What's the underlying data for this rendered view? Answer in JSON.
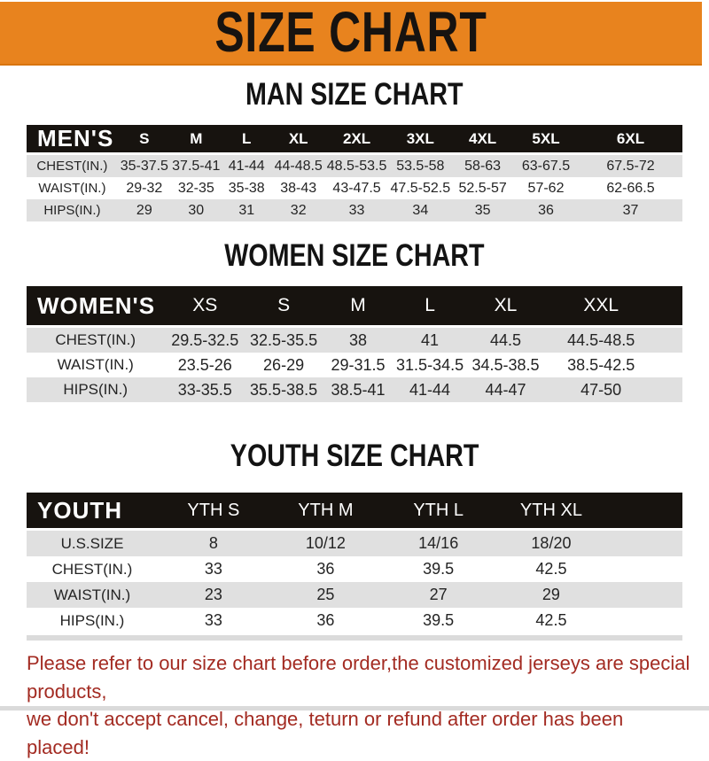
{
  "banner": {
    "title": "SIZE CHART",
    "bg_color": "#E8831E",
    "text_color": "#171310"
  },
  "colors": {
    "header_bar": "#17130F",
    "row_gray": "#E0E0E0",
    "row_white": "#FFFFFF",
    "footer_red": "#A32B22"
  },
  "sections": [
    {
      "title": "MAN SIZE CHART",
      "header": {
        "label": "MEN'S",
        "sizes": [
          "S",
          "M",
          "L",
          "XL",
          "2XL",
          "3XL",
          "4XL",
          "5XL",
          "6XL"
        ]
      },
      "rows": [
        {
          "label": "CHEST(IN.)",
          "values": [
            "35-37.5",
            "37.5-41",
            "41-44",
            "44-48.5",
            "48.5-53.5",
            "53.5-58",
            "58-63",
            "63-67.5",
            "67.5-72"
          ]
        },
        {
          "label": "WAIST(IN.)",
          "values": [
            "29-32",
            "32-35",
            "35-38",
            "38-43",
            "43-47.5",
            "47.5-52.5",
            "52.5-57",
            "57-62",
            "62-66.5"
          ]
        },
        {
          "label": "HIPS(IN.)",
          "values": [
            "29",
            "30",
            "31",
            "32",
            "33",
            "34",
            "35",
            "36",
            "37"
          ]
        }
      ]
    },
    {
      "title": "WOMEN SIZE CHART",
      "header": {
        "label": "WOMEN'S",
        "sizes": [
          "XS",
          "S",
          "M",
          "L",
          "XL",
          "XXL"
        ]
      },
      "rows": [
        {
          "label": "CHEST(IN.)",
          "values": [
            "29.5-32.5",
            "32.5-35.5",
            "38",
            "41",
            "44.5",
            "44.5-48.5"
          ]
        },
        {
          "label": "WAIST(IN.)",
          "values": [
            "23.5-26",
            "26-29",
            "29-31.5",
            "31.5-34.5",
            "34.5-38.5",
            "38.5-42.5"
          ]
        },
        {
          "label": "HIPS(IN.)",
          "values": [
            "33-35.5",
            "35.5-38.5",
            "38.5-41",
            "41-44",
            "44-47",
            "47-50"
          ]
        }
      ]
    },
    {
      "title": "YOUTH SIZE CHART",
      "header": {
        "label": "YOUTH",
        "sizes": [
          "YTH S",
          "YTH M",
          "YTH L",
          "YTH XL"
        ]
      },
      "rows": [
        {
          "label": "U.S.SIZE",
          "values": [
            "8",
            "10/12",
            "14/16",
            "18/20"
          ]
        },
        {
          "label": "CHEST(IN.)",
          "values": [
            "33",
            "36",
            "39.5",
            "42.5"
          ]
        },
        {
          "label": "WAIST(IN.)",
          "values": [
            "23",
            "25",
            "27",
            "29"
          ]
        },
        {
          "label": "HIPS(IN.)",
          "values": [
            "33",
            "36",
            "39.5",
            "42.5"
          ]
        }
      ]
    }
  ],
  "footer": {
    "line1": "Please refer to our size chart before order,the customized jerseys are special products,",
    "line2": "we don't accept cancel, change, teturn or refund after order has been placed!"
  }
}
